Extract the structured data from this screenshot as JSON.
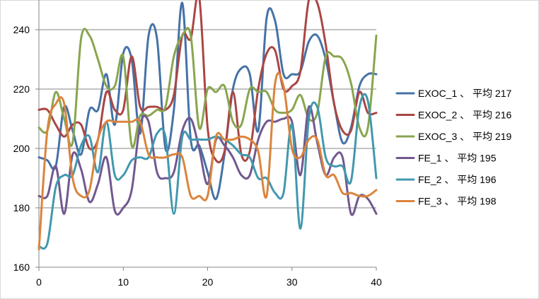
{
  "chart_data": {
    "type": "line",
    "title": "",
    "xlabel": "",
    "ylabel": "",
    "xlim": [
      0,
      40
    ],
    "ylim": [
      160,
      250
    ],
    "xticks": [
      0,
      10,
      20,
      30,
      40
    ],
    "yticks": [
      160,
      180,
      200,
      220,
      240
    ],
    "grid": "horizontal",
    "legend_position": "right",
    "x": [
      0,
      1,
      2,
      3,
      4,
      5,
      6,
      7,
      8,
      9,
      10,
      11,
      12,
      13,
      14,
      15,
      16,
      17,
      18,
      19,
      20,
      21,
      22,
      23,
      24,
      25,
      26,
      27,
      28,
      29,
      30,
      31,
      32,
      33,
      34,
      35,
      36,
      37,
      38,
      39,
      40
    ],
    "series": [
      {
        "name": "EXOC_1 、 平均 217",
        "color": "#4572a7",
        "values": [
          197,
          196,
          194,
          214,
          206,
          198,
          213,
          213,
          225,
          208,
          232,
          230,
          205,
          238,
          237,
          200,
          213,
          249,
          203,
          201,
          192,
          183,
          198,
          220,
          227,
          225,
          206,
          244,
          243,
          225,
          225,
          226,
          236,
          238,
          230,
          215,
          202,
          207,
          221,
          225,
          225
        ]
      },
      {
        "name": "EXOC_2 、 平均 216",
        "color": "#aa4643",
        "values": [
          213,
          213,
          208,
          204,
          208,
          208,
          200,
          203,
          219,
          213,
          213,
          231,
          214,
          214,
          214,
          213,
          218,
          238,
          237,
          251,
          207,
          196,
          199,
          219,
          198,
          199,
          220,
          232,
          233,
          220,
          221,
          226,
          250,
          249,
          235,
          215,
          206,
          206,
          219,
          212,
          212
        ]
      },
      {
        "name": "EXOC_3 、 平均 219",
        "color": "#89a54e",
        "values": [
          207,
          206,
          219,
          210,
          202,
          237,
          238,
          230,
          221,
          221,
          231,
          201,
          211,
          211,
          213,
          214,
          231,
          238,
          238,
          207,
          220,
          219,
          221,
          209,
          208,
          220,
          219,
          219,
          213,
          212,
          213,
          218,
          210,
          212,
          231,
          231,
          230,
          222,
          207,
          207,
          238
        ]
      },
      {
        "name": "FE_1 、 平均 195",
        "color": "#71588f",
        "values": [
          184,
          184,
          194,
          178,
          198,
          193,
          182,
          188,
          197,
          179,
          180,
          186,
          208,
          209,
          192,
          190,
          192,
          206,
          210,
          200,
          188,
          203,
          201,
          197,
          191,
          191,
          203,
          209,
          209,
          210,
          209,
          191,
          214,
          202,
          191,
          197,
          197,
          178,
          184,
          183,
          178
        ]
      },
      {
        "name": "FE_2 、 平均 196",
        "color": "#4198af",
        "values": [
          167,
          168,
          187,
          191,
          191,
          201,
          204,
          192,
          209,
          191,
          191,
          196,
          197,
          197,
          205,
          204,
          178,
          204,
          203,
          203,
          203,
          204,
          203,
          201,
          198,
          197,
          190,
          190,
          185,
          185,
          208,
          173,
          210,
          214,
          197,
          194,
          194,
          189,
          214,
          216,
          190
        ]
      },
      {
        "name": "FE_3 、 平均 198",
        "color": "#db843d",
        "values": [
          166,
          206,
          215,
          215,
          190,
          184,
          186,
          203,
          209,
          209,
          209,
          209,
          209,
          198,
          197,
          197,
          198,
          197,
          184,
          184,
          184,
          204,
          203,
          203,
          204,
          203,
          199,
          184,
          222,
          221,
          200,
          197,
          203,
          203,
          191,
          191,
          185,
          185,
          184,
          184,
          186
        ]
      }
    ]
  }
}
